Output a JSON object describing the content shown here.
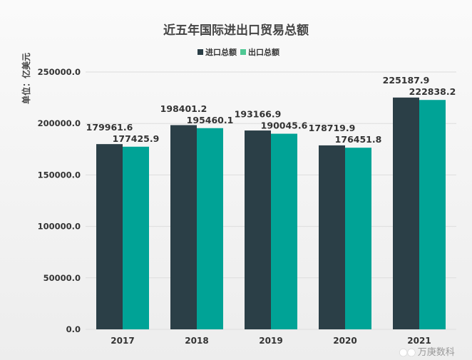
{
  "chart_data": {
    "type": "bar",
    "title": "近五年国际进出口贸易总额",
    "ylabel": "单位：亿美元",
    "xlabel": "",
    "categories": [
      "2017",
      "2018",
      "2019",
      "2020",
      "2021"
    ],
    "series": [
      {
        "name": "进口总额",
        "values": [
          179961.6,
          198401.2,
          193166.9,
          178719.9,
          225187.9
        ],
        "color": "#2b3f47"
      },
      {
        "name": "出口总额",
        "values": [
          177425.9,
          195460.1,
          190045.6,
          176451.8,
          222838.2
        ],
        "color": "#00a396"
      }
    ],
    "legend_colors": [
      "#2b3f47",
      "#4fc894"
    ],
    "ylim": [
      0,
      250000
    ],
    "yticks": [
      "0.0",
      "50000.0",
      "100000.0",
      "150000.0",
      "200000.0",
      "250000.0"
    ],
    "grid": true,
    "legend_position": "top"
  },
  "watermark": "万庚数科"
}
